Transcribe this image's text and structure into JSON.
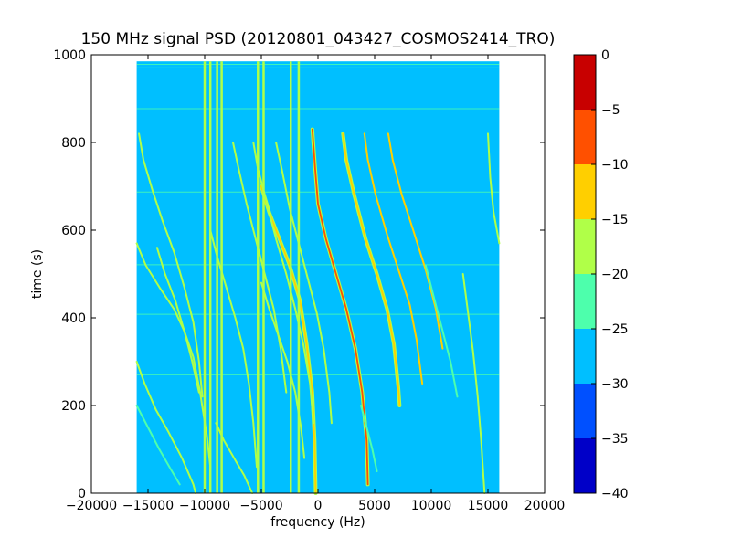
{
  "chart_data": {
    "type": "heatmap",
    "title": "150 MHz signal PSD (20120801_043427_COSMOS2414_TRO)",
    "xlabel": "frequency (Hz)",
    "ylabel": "time (s)",
    "xlim": [
      -20000,
      20000
    ],
    "ylim": [
      0,
      1000
    ],
    "data_extent": {
      "x": [
        -16000,
        16000
      ],
      "y": [
        0,
        985
      ]
    },
    "xticks": [
      -20000,
      -15000,
      -10000,
      -5000,
      0,
      5000,
      10000,
      15000,
      20000
    ],
    "xtick_labels": [
      "−20000",
      "−15000",
      "−10000",
      "−5000",
      "0",
      "5000",
      "10000",
      "15000",
      "20000"
    ],
    "yticks": [
      0,
      200,
      400,
      600,
      800,
      1000
    ],
    "ytick_labels": [
      "0",
      "200",
      "400",
      "600",
      "800",
      "1000"
    ],
    "background_level": -27.5,
    "colorbar": {
      "range": [
        -40,
        0
      ],
      "ticks": [
        0,
        -5,
        -10,
        -15,
        -20,
        -25,
        -30,
        -35,
        -40
      ],
      "tick_labels": [
        "0",
        "−5",
        "−10",
        "−15",
        "−20",
        "−25",
        "−30",
        "−35",
        "−40"
      ],
      "bands": [
        {
          "from": -5,
          "to": 0,
          "color": "#c80000"
        },
        {
          "from": -10,
          "to": -5,
          "color": "#ff5000"
        },
        {
          "from": -15,
          "to": -10,
          "color": "#ffcf00"
        },
        {
          "from": -20,
          "to": -15,
          "color": "#b0ff48"
        },
        {
          "from": -25,
          "to": -20,
          "color": "#4dffac"
        },
        {
          "from": -30,
          "to": -25,
          "color": "#00bfff"
        },
        {
          "from": -35,
          "to": -30,
          "color": "#0050ff"
        },
        {
          "from": -40,
          "to": -35,
          "color": "#0000c8"
        }
      ]
    },
    "vertical_lines": [
      {
        "freq": -10000,
        "level": -17
      },
      {
        "freq": -9500,
        "level": -17
      },
      {
        "freq": -8900,
        "level": -17
      },
      {
        "freq": -8500,
        "level": -17
      },
      {
        "freq": -5300,
        "level": -17
      },
      {
        "freq": -4800,
        "level": -17
      },
      {
        "freq": -2400,
        "level": -17
      },
      {
        "freq": -1700,
        "level": -17
      }
    ],
    "horizontal_lines": [
      {
        "time": 978,
        "level": -22
      },
      {
        "time": 970,
        "level": -22
      },
      {
        "time": 877,
        "level": -22
      },
      {
        "time": 687,
        "level": -22
      },
      {
        "time": 521,
        "level": -22
      },
      {
        "time": 408,
        "level": -22
      },
      {
        "time": 270,
        "level": -22
      }
    ],
    "tracks": [
      {
        "level": -8,
        "points": [
          [
            -500,
            830
          ],
          [
            -250,
            740
          ],
          [
            0,
            660
          ],
          [
            700,
            580
          ],
          [
            1600,
            500
          ],
          [
            2500,
            420
          ],
          [
            3300,
            330
          ],
          [
            3900,
            230
          ],
          [
            4300,
            120
          ],
          [
            4400,
            20
          ]
        ]
      },
      {
        "level": -12,
        "points": [
          [
            -5000,
            700
          ],
          [
            -4300,
            640
          ],
          [
            -3400,
            580
          ],
          [
            -2500,
            520
          ],
          [
            -1600,
            440
          ],
          [
            -1000,
            340
          ],
          [
            -500,
            230
          ],
          [
            -300,
            120
          ],
          [
            -200,
            0
          ]
        ]
      },
      {
        "level": -12,
        "points": [
          [
            2200,
            820
          ],
          [
            2500,
            760
          ],
          [
            3200,
            680
          ],
          [
            4200,
            580
          ],
          [
            5200,
            500
          ],
          [
            6100,
            420
          ],
          [
            6700,
            340
          ],
          [
            7100,
            240
          ],
          [
            7200,
            200
          ]
        ]
      },
      {
        "level": -15,
        "points": [
          [
            4100,
            820
          ],
          [
            4400,
            760
          ],
          [
            5100,
            680
          ],
          [
            6100,
            590
          ],
          [
            7100,
            510
          ],
          [
            8100,
            430
          ],
          [
            8700,
            350
          ],
          [
            9200,
            250
          ]
        ]
      },
      {
        "level": -15,
        "points": [
          [
            6200,
            820
          ],
          [
            6600,
            760
          ],
          [
            7400,
            680
          ],
          [
            8400,
            600
          ],
          [
            9500,
            510
          ],
          [
            10400,
            420
          ],
          [
            11000,
            330
          ]
        ]
      },
      {
        "level": -20,
        "points": [
          [
            -5700,
            800
          ],
          [
            -5300,
            740
          ],
          [
            -4500,
            660
          ],
          [
            -3700,
            580
          ],
          [
            -2800,
            500
          ],
          [
            -2000,
            420
          ],
          [
            -1300,
            340
          ],
          [
            -700,
            250
          ],
          [
            -400,
            160
          ]
        ]
      },
      {
        "level": -20,
        "points": [
          [
            -3700,
            800
          ],
          [
            -3200,
            740
          ],
          [
            -2500,
            650
          ],
          [
            -1700,
            570
          ],
          [
            -900,
            490
          ],
          [
            -100,
            410
          ],
          [
            500,
            330
          ],
          [
            1000,
            230
          ],
          [
            1200,
            160
          ]
        ]
      },
      {
        "level": -20,
        "points": [
          [
            -7500,
            800
          ],
          [
            -7000,
            740
          ],
          [
            -6300,
            660
          ],
          [
            -5500,
            580
          ],
          [
            -4700,
            500
          ],
          [
            -3900,
            420
          ],
          [
            -3300,
            330
          ],
          [
            -2800,
            230
          ]
        ]
      },
      {
        "level": -20,
        "points": [
          [
            -15800,
            820
          ],
          [
            -15400,
            760
          ],
          [
            -14600,
            690
          ],
          [
            -13700,
            620
          ],
          [
            -12700,
            550
          ],
          [
            -11800,
            470
          ],
          [
            -11000,
            390
          ],
          [
            -10500,
            300
          ],
          [
            -10200,
            220
          ]
        ]
      },
      {
        "level": -20,
        "points": [
          [
            -16000,
            570
          ],
          [
            -15200,
            520
          ],
          [
            -14000,
            470
          ],
          [
            -12700,
            420
          ],
          [
            -11800,
            370
          ],
          [
            -11000,
            310
          ],
          [
            -10400,
            230
          ],
          [
            -9800,
            130
          ],
          [
            -9500,
            60
          ]
        ]
      },
      {
        "level": -20,
        "points": [
          [
            -14200,
            560
          ],
          [
            -13500,
            500
          ],
          [
            -12600,
            440
          ],
          [
            -11800,
            370
          ],
          [
            -11100,
            300
          ],
          [
            -10500,
            230
          ]
        ]
      },
      {
        "level": -20,
        "points": [
          [
            -9500,
            600
          ],
          [
            -8900,
            540
          ],
          [
            -8100,
            470
          ],
          [
            -7300,
            400
          ],
          [
            -6600,
            330
          ],
          [
            -6100,
            250
          ],
          [
            -5700,
            160
          ],
          [
            -5400,
            60
          ]
        ]
      },
      {
        "level": -20,
        "points": [
          [
            -16000,
            300
          ],
          [
            -15300,
            250
          ],
          [
            -14300,
            190
          ],
          [
            -13200,
            140
          ],
          [
            -12000,
            80
          ],
          [
            -11000,
            20
          ],
          [
            -10800,
            0
          ]
        ]
      },
      {
        "level": -20,
        "points": [
          [
            -5000,
            480
          ],
          [
            -4300,
            420
          ],
          [
            -3500,
            360
          ],
          [
            -2700,
            300
          ],
          [
            -2000,
            230
          ],
          [
            -1500,
            150
          ],
          [
            -1200,
            80
          ]
        ]
      },
      {
        "level": -20,
        "points": [
          [
            -9000,
            160
          ],
          [
            -8300,
            120
          ],
          [
            -7400,
            80
          ],
          [
            -6500,
            40
          ],
          [
            -5800,
            0
          ]
        ]
      },
      {
        "level": -20,
        "points": [
          [
            12800,
            500
          ],
          [
            13200,
            420
          ],
          [
            13700,
            320
          ],
          [
            14100,
            220
          ],
          [
            14400,
            120
          ],
          [
            14600,
            40
          ],
          [
            14700,
            0
          ]
        ]
      },
      {
        "level": -20,
        "points": [
          [
            15000,
            820
          ],
          [
            15200,
            720
          ],
          [
            15500,
            640
          ],
          [
            16000,
            570
          ]
        ]
      },
      {
        "level": -22,
        "points": [
          [
            -16000,
            200
          ],
          [
            -15000,
            150
          ],
          [
            -14000,
            100
          ],
          [
            -13000,
            55
          ],
          [
            -12200,
            20
          ]
        ]
      },
      {
        "level": -22,
        "points": [
          [
            3800,
            200
          ],
          [
            4300,
            150
          ],
          [
            4800,
            100
          ],
          [
            5200,
            50
          ]
        ]
      },
      {
        "level": -22,
        "points": [
          [
            9500,
            520
          ],
          [
            10100,
            460
          ],
          [
            10900,
            380
          ],
          [
            11700,
            300
          ],
          [
            12300,
            220
          ]
        ]
      }
    ]
  }
}
